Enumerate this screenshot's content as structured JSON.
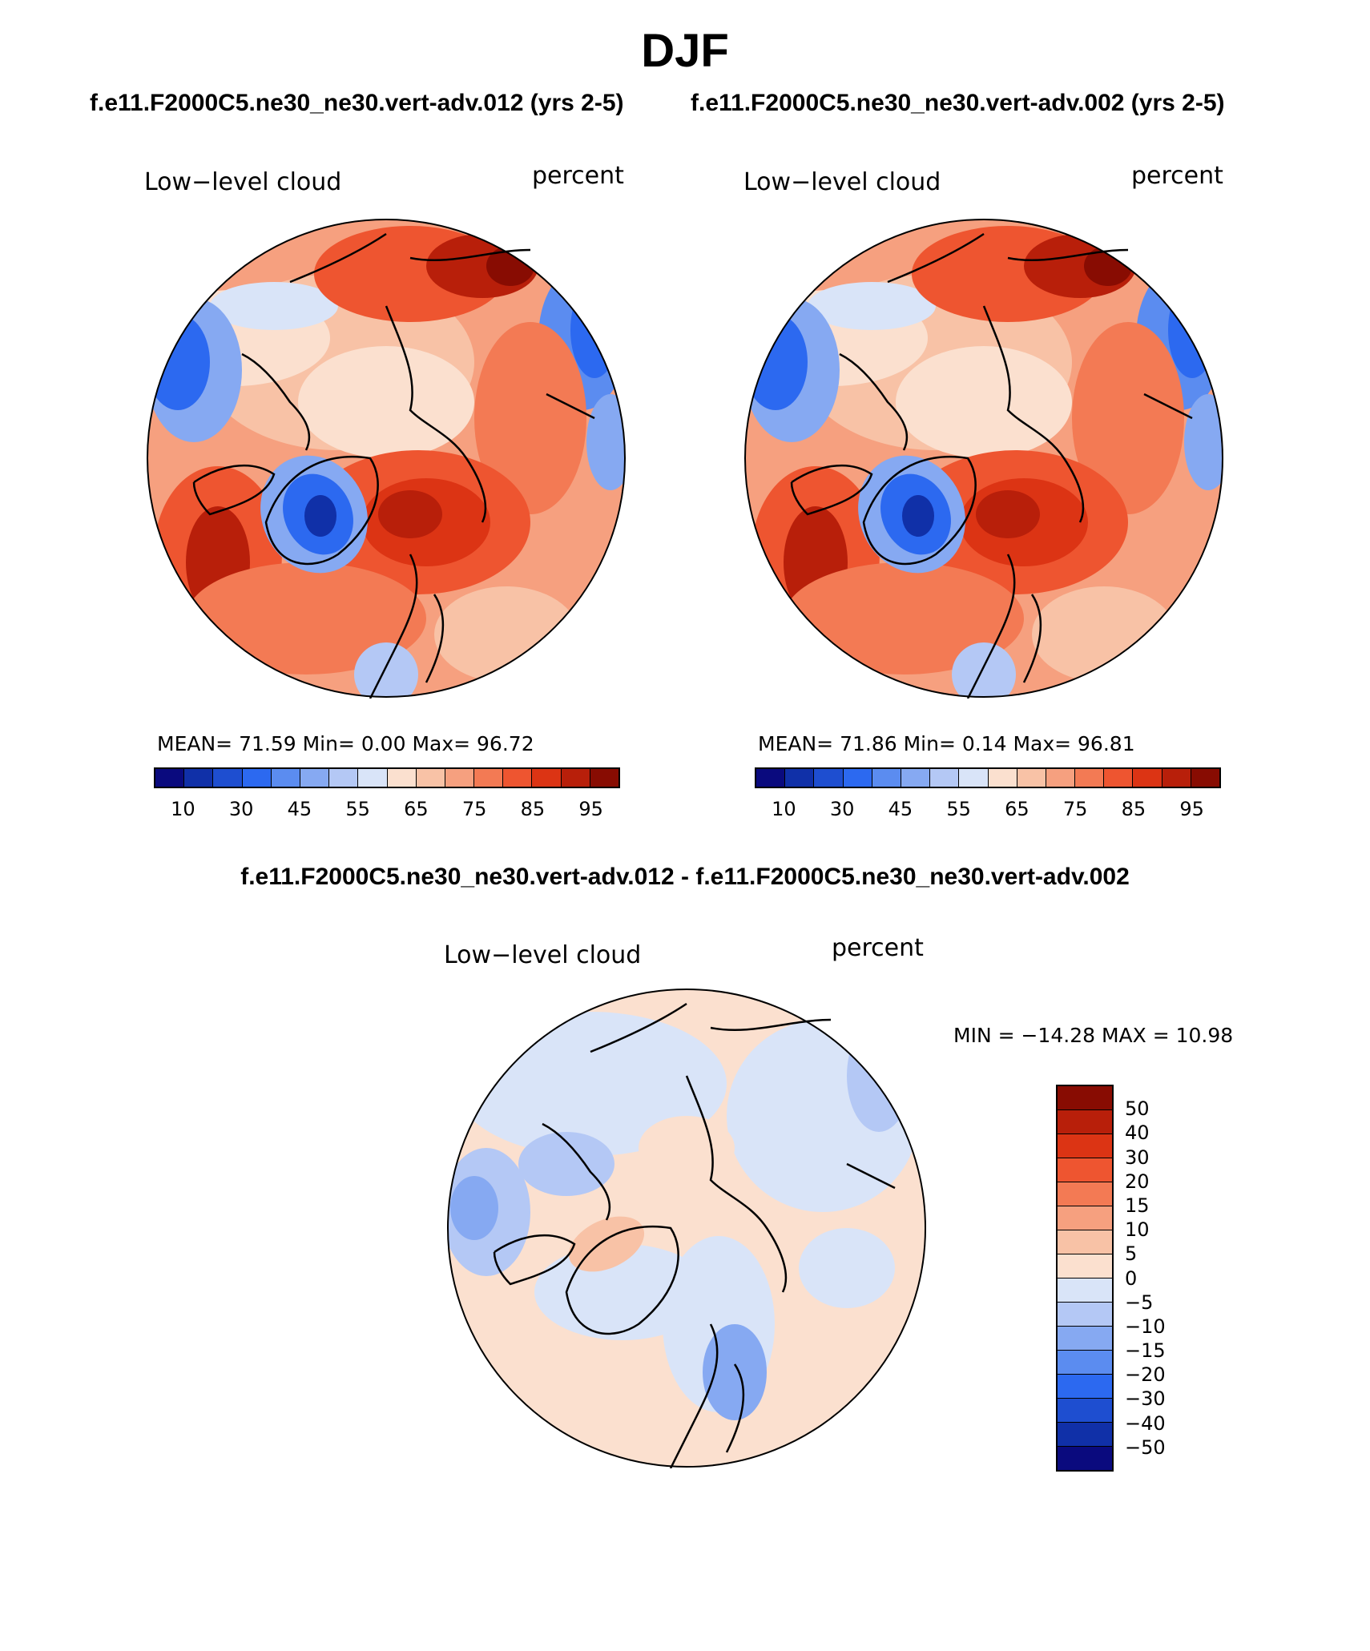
{
  "title": "DJF",
  "cases": {
    "left": "f.e11.F2000C5.ne30_ne30.vert-adv.012 (yrs 2-5)",
    "right": "f.e11.F2000C5.ne30_ne30.vert-adv.002 (yrs 2-5)",
    "difference": "f.e11.F2000C5.ne30_ne30.vert-adv.012 - f.e11.F2000C5.ne30_ne30.vert-adv.002"
  },
  "panels": [
    {
      "variable": "Low−level cloud",
      "units": "percent",
      "stats": "MEAN=   71.59   Min=    0.00   Max=   96.72"
    },
    {
      "variable": "Low−level cloud",
      "units": "percent",
      "stats": "MEAN=   71.86   Min=    0.14   Max=   96.81"
    },
    {
      "variable": "Low−level cloud",
      "units": "percent",
      "stats": "MIN =  −14.28  MAX =    10.98"
    }
  ],
  "chart_data": [
    {
      "type": "heatmap",
      "projection": "north polar stereographic",
      "title": "Low-level cloud",
      "units": "percent",
      "case": "f.e11.F2000C5.ne30_ne30.vert-adv.012 (yrs 2-5)",
      "mean": 71.59,
      "min": 0.0,
      "max": 96.72,
      "color_levels": [
        10,
        30,
        45,
        55,
        65,
        75,
        85,
        95
      ]
    },
    {
      "type": "heatmap",
      "projection": "north polar stereographic",
      "title": "Low-level cloud",
      "units": "percent",
      "case": "f.e11.F2000C5.ne30_ne30.vert-adv.002 (yrs 2-5)",
      "mean": 71.86,
      "min": 0.14,
      "max": 96.81,
      "color_levels": [
        10,
        30,
        45,
        55,
        65,
        75,
        85,
        95
      ]
    },
    {
      "type": "heatmap",
      "projection": "north polar stereographic",
      "title": "Low-level cloud",
      "units": "percent",
      "case": "f.e11.F2000C5.ne30_ne30.vert-adv.012 - f.e11.F2000C5.ne30_ne30.vert-adv.002",
      "min": -14.28,
      "max": 10.98,
      "color_levels": [
        50,
        40,
        30,
        20,
        15,
        10,
        5,
        0,
        -5,
        -10,
        -15,
        -20,
        -30,
        -40,
        -50
      ]
    }
  ],
  "colorbar_h": {
    "labels": [
      "10",
      "30",
      "45",
      "55",
      "65",
      "75",
      "85",
      "95"
    ],
    "colors": [
      "#0a0a7e",
      "#1030a8",
      "#1e4ed0",
      "#2c69f0",
      "#5b8cf0",
      "#86a9f2",
      "#b4c8f5",
      "#d9e4f8",
      "#fbe0cf",
      "#f8c2a6",
      "#f6a07f",
      "#f37a54",
      "#ee5530",
      "#dc3414",
      "#b81f0a",
      "#880c02"
    ]
  },
  "colorbar_v": {
    "labels": [
      "50",
      "40",
      "30",
      "20",
      "15",
      "10",
      "5",
      "0",
      "−5",
      "−10",
      "−15",
      "−20",
      "−30",
      "−40",
      "−50"
    ],
    "colors": [
      "#880c02",
      "#b81f0a",
      "#dc3414",
      "#ee5530",
      "#f37a54",
      "#f6a07f",
      "#f8c2a6",
      "#fbe0cf",
      "#d9e4f8",
      "#b4c8f5",
      "#86a9f2",
      "#5b8cf0",
      "#2c69f0",
      "#1e4ed0",
      "#1030a8",
      "#0a0a7e"
    ]
  }
}
